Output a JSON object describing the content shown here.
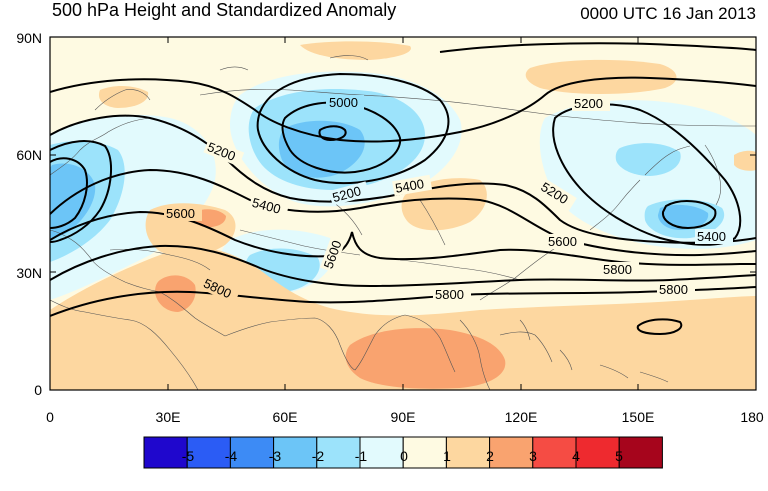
{
  "header": {
    "title": "500 hPa Height and Standardized Anomaly",
    "timestamp": "0000 UTC 16 Jan 2013"
  },
  "axes": {
    "lat_labels": [
      "90N",
      "60N",
      "30N",
      "0"
    ],
    "lon_labels": [
      "0",
      "30E",
      "60E",
      "90E",
      "120E",
      "150E",
      "180"
    ]
  },
  "contours": {
    "labels": [
      "5000",
      "5200",
      "5200",
      "5200",
      "5200",
      "5400",
      "5400",
      "5400",
      "5600",
      "5600",
      "5600",
      "5800",
      "5800",
      "5800"
    ]
  },
  "colorbar": {
    "colors": [
      "#1f07cd",
      "#2b5cf5",
      "#3d8bf5",
      "#6cc5f7",
      "#9ce3fb",
      "#e2fafd",
      "#fefae2",
      "#fdd7a0",
      "#f9a36f",
      "#f54c44",
      "#ee2a2f",
      "#a6051c"
    ],
    "labels": [
      "-5",
      "-4",
      "-3",
      "-2",
      "-1",
      "0",
      "1",
      "2",
      "3",
      "4",
      "5"
    ]
  }
}
